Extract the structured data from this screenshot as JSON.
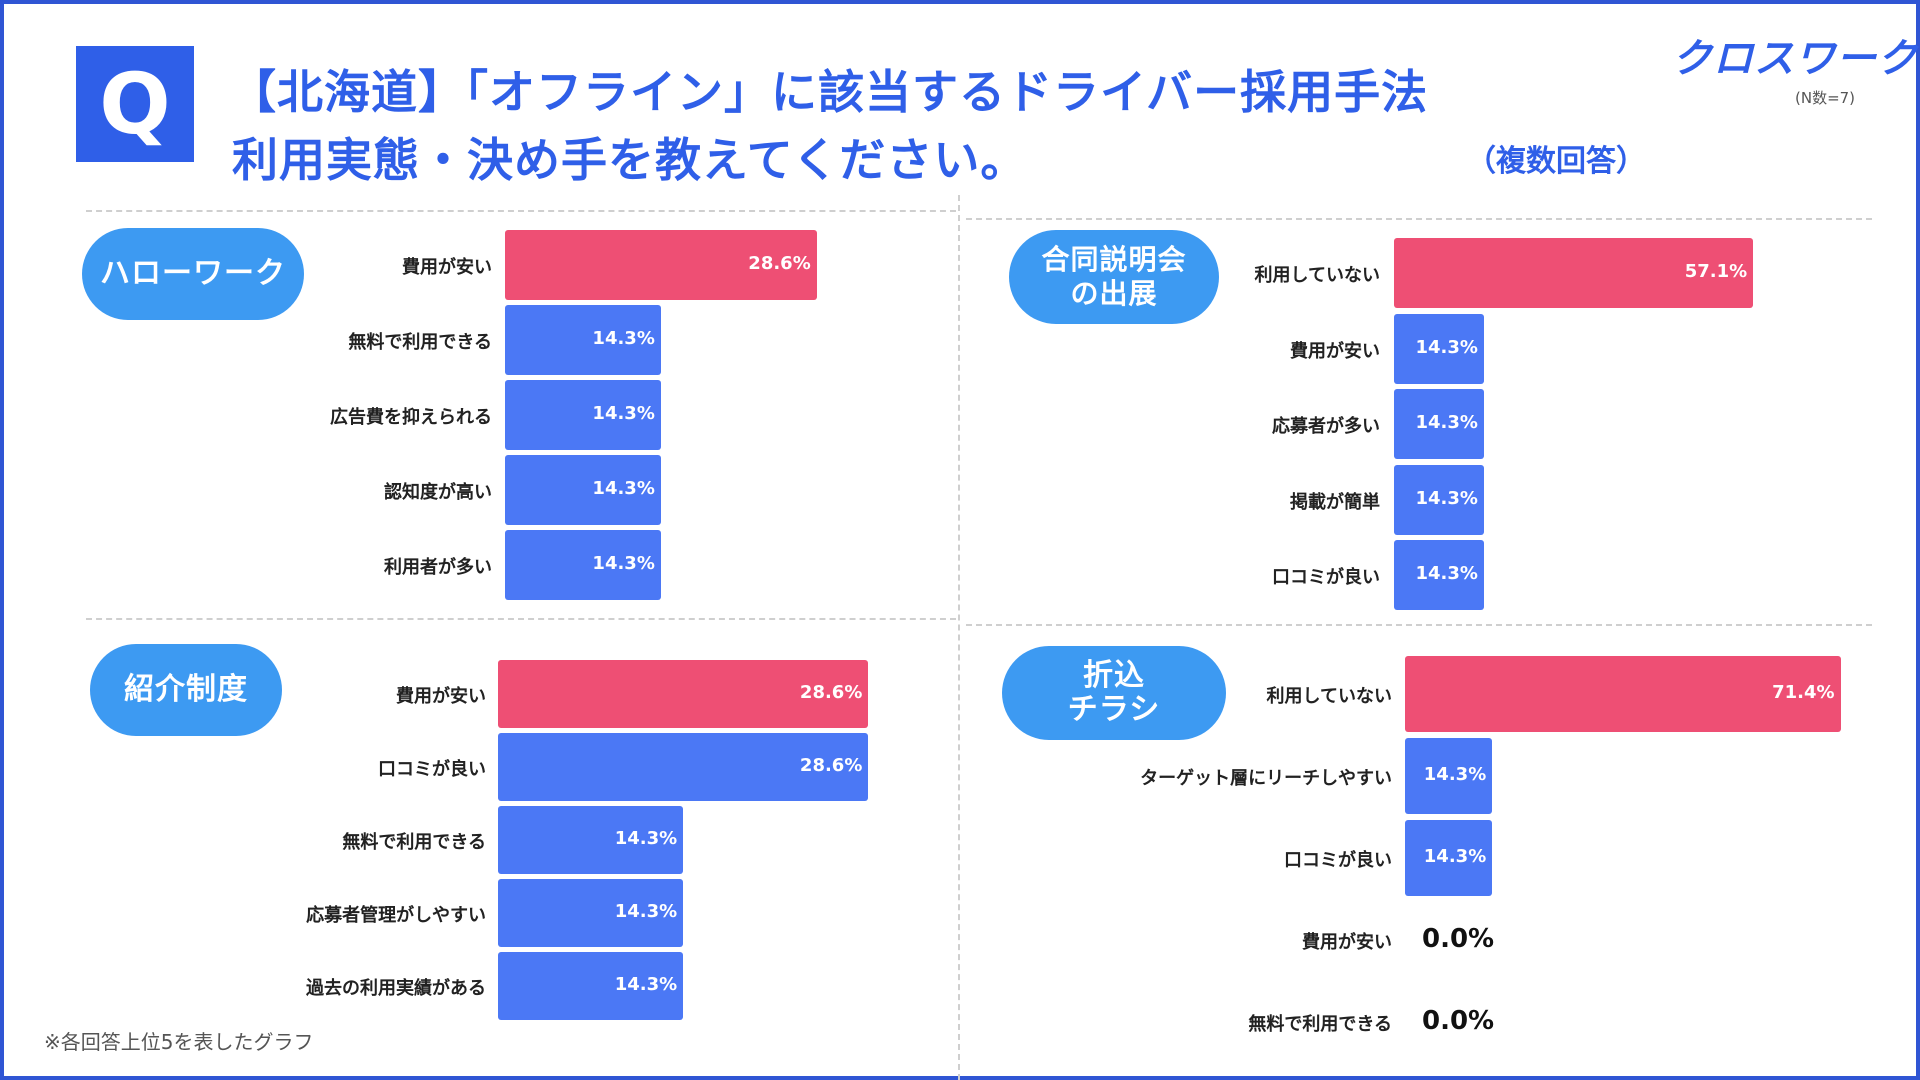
{
  "header": {
    "q_label": "Q",
    "title_line1": "【北海道】「オフライン」に該当するドライバー採用手法",
    "title_line2": "利用実態・決め手を教えてください。",
    "multiple_answer": "（複数回答）",
    "logo": "クロスワーク",
    "sample_size": "(N数=7)"
  },
  "footnote": "※各回答上位5を表したグラフ",
  "colors": {
    "highlight": "#ee4f74",
    "bar": "#4b78f5",
    "pill": "#3d9af2",
    "accent": "#2f5fe8"
  },
  "chart_data": [
    {
      "type": "bar",
      "orientation": "horizontal",
      "title": "ハローワーク",
      "categories": [
        "費用が安い",
        "無料で利用できる",
        "広告費を抑えられる",
        "認知度が高い",
        "利用者が多い"
      ],
      "values": [
        28.6,
        14.3,
        14.3,
        14.3,
        14.3
      ],
      "labels": [
        "28.6%",
        "14.3%",
        "14.3%",
        "14.3%",
        "14.3%"
      ],
      "unit": "%"
    },
    {
      "type": "bar",
      "orientation": "horizontal",
      "title": "合同説明会の出展",
      "title_lines": [
        "合同説明会",
        "の出展"
      ],
      "categories": [
        "利用していない",
        "費用が安い",
        "応募者が多い",
        "掲載が簡単",
        "口コミが良い"
      ],
      "values": [
        57.1,
        14.3,
        14.3,
        14.3,
        14.3
      ],
      "labels": [
        "57.1%",
        "14.3%",
        "14.3%",
        "14.3%",
        "14.3%"
      ],
      "unit": "%"
    },
    {
      "type": "bar",
      "orientation": "horizontal",
      "title": "紹介制度",
      "categories": [
        "費用が安い",
        "口コミが良い",
        "無料で利用できる",
        "応募者管理がしやすい",
        "過去の利用実績がある"
      ],
      "values": [
        28.6,
        28.6,
        14.3,
        14.3,
        14.3
      ],
      "labels": [
        "28.6%",
        "28.6%",
        "14.3%",
        "14.3%",
        "14.3%"
      ],
      "unit": "%"
    },
    {
      "type": "bar",
      "orientation": "horizontal",
      "title": "折込チラシ",
      "title_lines": [
        "折込",
        "チラシ"
      ],
      "categories": [
        "利用していない",
        "ターゲット層にリーチしやすい",
        "口コミが良い",
        "費用が安い",
        "無料で利用できる"
      ],
      "values": [
        71.4,
        14.3,
        14.3,
        0.0,
        0.0
      ],
      "labels": [
        "71.4%",
        "14.3%",
        "14.3%",
        "0.0%",
        "0.0%"
      ],
      "unit": "%"
    }
  ]
}
